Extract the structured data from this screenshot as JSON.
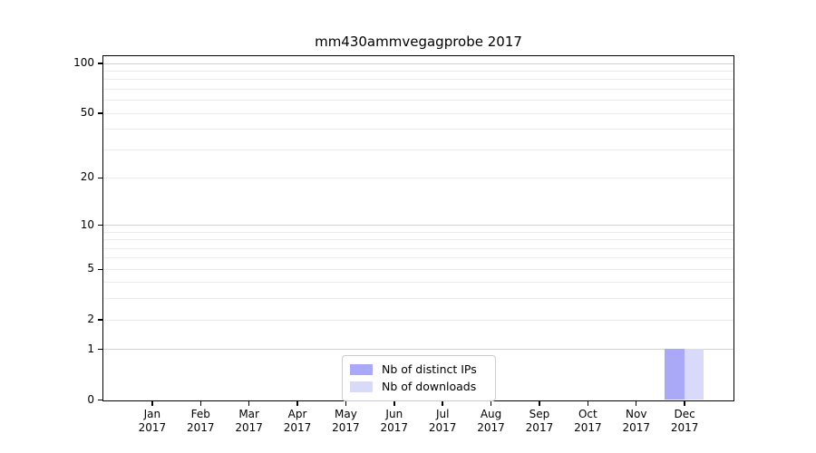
{
  "chart_data": {
    "type": "bar",
    "title": "mm430ammvegagprobe 2017",
    "categories": [
      "Jan",
      "Feb",
      "Mar",
      "Apr",
      "May",
      "Jun",
      "Jul",
      "Aug",
      "Sep",
      "Oct",
      "Nov",
      "Dec"
    ],
    "year_label": "2017",
    "series": [
      {
        "name": "Nb of distinct IPs",
        "color": "#a9a9f7",
        "values": [
          0,
          0,
          0,
          0,
          0,
          0,
          0,
          0,
          0,
          0,
          0,
          1
        ]
      },
      {
        "name": "Nb of downloads",
        "color": "#d9d9fa",
        "values": [
          0,
          0,
          0,
          0,
          0,
          0,
          0,
          0,
          0,
          0,
          0,
          1
        ]
      }
    ],
    "y_axis": {
      "scale": "log1p",
      "labeled_ticks": [
        0,
        1,
        2,
        5,
        10,
        20,
        50,
        100
      ],
      "major_gridlines": [
        1,
        10,
        100
      ],
      "minor_gridlines": [
        2,
        3,
        4,
        5,
        6,
        7,
        8,
        9,
        20,
        30,
        40,
        50,
        60,
        70,
        80,
        90
      ],
      "ylim": [
        0,
        110
      ]
    },
    "legend": {
      "position": "bottom-center-inside"
    },
    "grid": true
  },
  "colors": {
    "spine": "#000000",
    "minor_grid": "#ececec",
    "major_grid": "#d2d2d2",
    "background": "#ffffff",
    "legend_border": "#cccccc"
  }
}
